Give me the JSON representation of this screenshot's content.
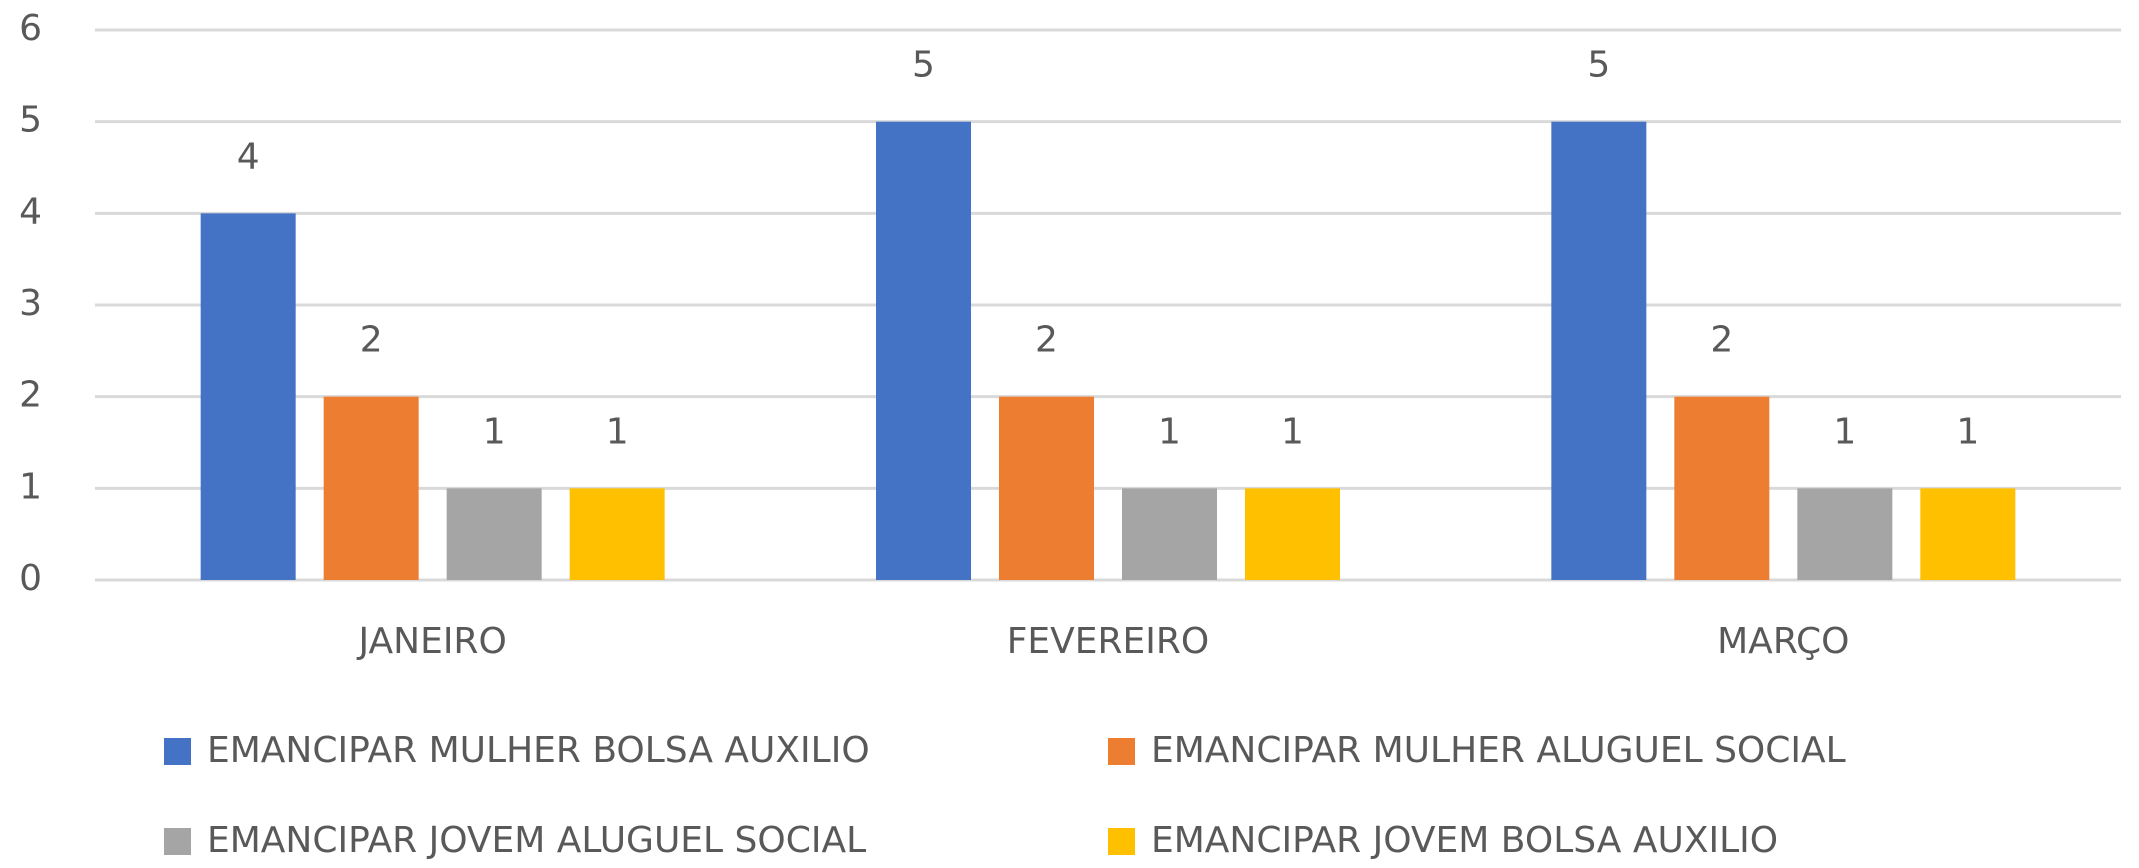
{
  "chart_data": {
    "type": "bar",
    "categories": [
      "JANEIRO",
      "FEVEREIRO",
      "MARÇO"
    ],
    "series": [
      {
        "name": "EMANCIPAR MULHER BOLSA AUXILIO",
        "color": "#4472c4",
        "values": [
          4,
          5,
          5
        ]
      },
      {
        "name": "EMANCIPAR MULHER ALUGUEL SOCIAL",
        "color": "#ed7d31",
        "values": [
          2,
          2,
          2
        ]
      },
      {
        "name": "EMANCIPAR JOVEM ALUGUEL SOCIAL",
        "color": "#a5a5a5",
        "values": [
          1,
          1,
          1
        ]
      },
      {
        "name": "EMANCIPAR JOVEM BOLSA AUXILIO",
        "color": "#ffc000",
        "values": [
          1,
          1,
          1
        ]
      }
    ],
    "ylim": [
      0,
      6
    ],
    "yticks": [
      0,
      1,
      2,
      3,
      4,
      5,
      6
    ],
    "grid": true,
    "legend": "bottom"
  }
}
